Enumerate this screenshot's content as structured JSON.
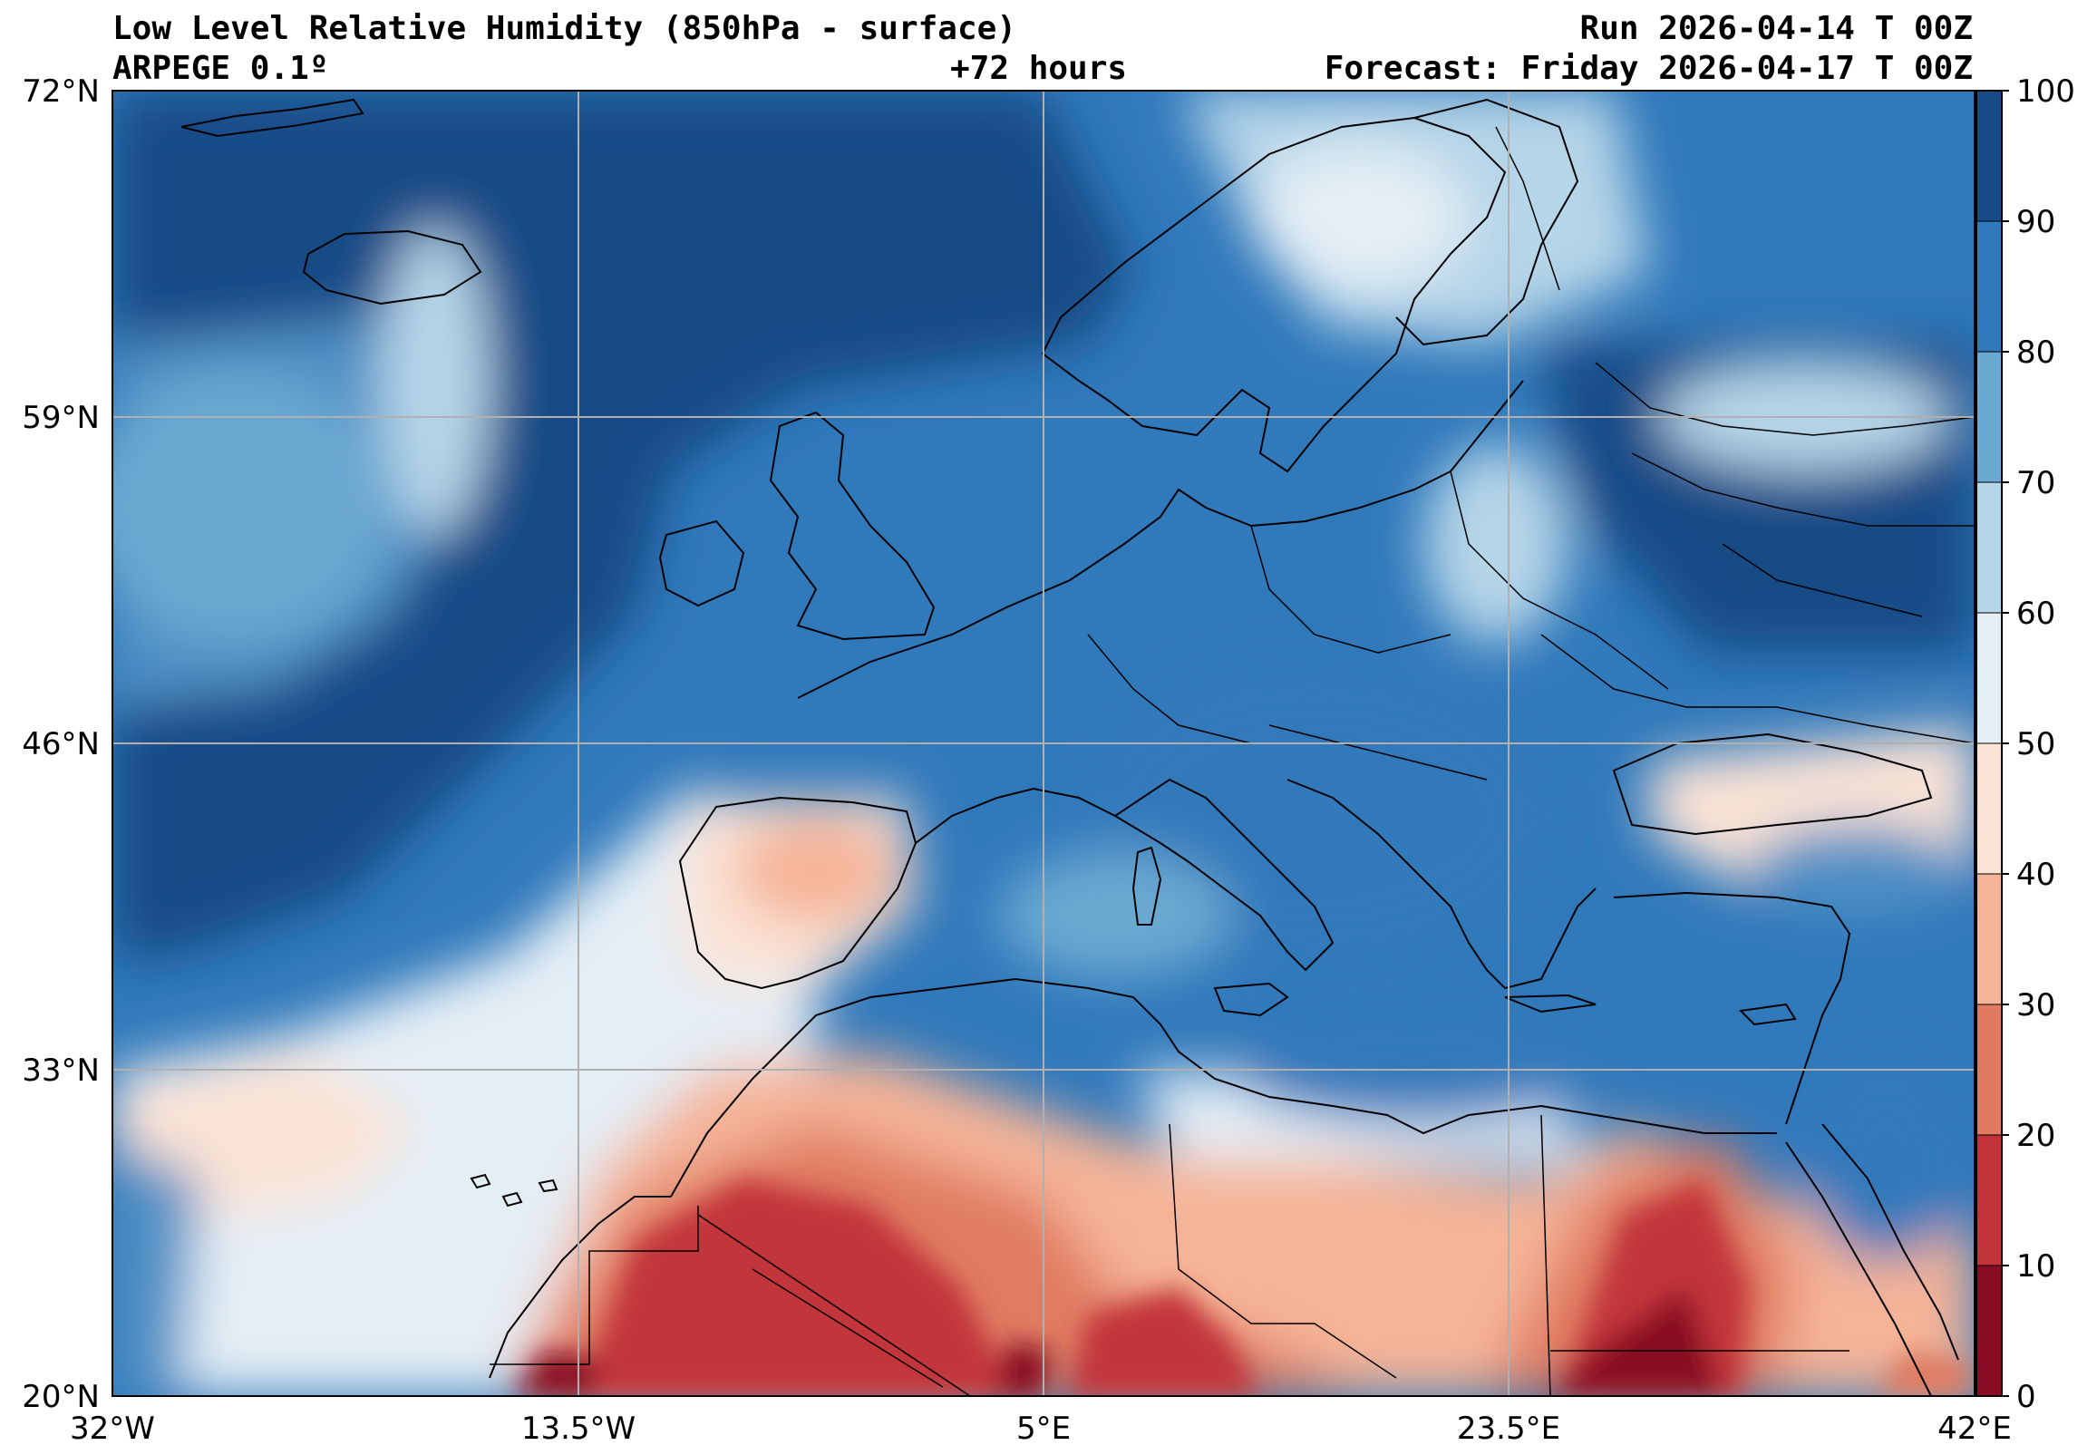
{
  "header": {
    "title": "Low Level Relative Humidity (850hPa - surface)",
    "model": "ARPEGE 0.1º",
    "lead_time": "+72 hours",
    "run": "Run 2026-04-14 T 00Z",
    "forecast": "Forecast: Friday 2026-04-17 T 00Z"
  },
  "map": {
    "lat_ticks": [
      "72°N",
      "59°N",
      "46°N",
      "33°N",
      "20°N"
    ],
    "lon_ticks": [
      "32°W",
      "13.5°W",
      "5°E",
      "23.5°E",
      "42°E"
    ],
    "lat_range": [
      20,
      72
    ],
    "lon_range": [
      -32,
      42
    ],
    "gridlines": true
  },
  "colorbar": {
    "ticks": [
      "100",
      "90",
      "80",
      "70",
      "60",
      "50",
      "40",
      "30",
      "20",
      "10",
      "0"
    ],
    "levels": [
      0,
      10,
      20,
      30,
      40,
      50,
      60,
      70,
      80,
      90,
      100
    ],
    "colors": [
      "#8a0c24",
      "#c2343a",
      "#e07b62",
      "#f5b497",
      "#fbe3d6",
      "#e4eef5",
      "#b5d5e8",
      "#6aa9d1",
      "#3079bb",
      "#164b86"
    ]
  }
}
